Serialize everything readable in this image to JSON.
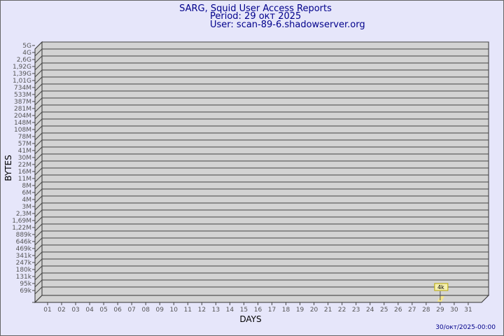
{
  "header": {
    "title": "SARG, Squid User Access Reports",
    "period": "Period: 29 окт 2025",
    "user": "User: scan-89-6.shadowserver.org"
  },
  "footer": {
    "generated": "30/окт/2025-00:00"
  },
  "chart_data": {
    "type": "bar",
    "xlabel": "DAYS",
    "ylabel": "BYTES",
    "categories": [
      "01",
      "02",
      "03",
      "04",
      "05",
      "06",
      "07",
      "08",
      "09",
      "10",
      "11",
      "12",
      "13",
      "14",
      "15",
      "16",
      "17",
      "18",
      "19",
      "20",
      "21",
      "22",
      "23",
      "24",
      "25",
      "26",
      "27",
      "28",
      "29",
      "30",
      "31"
    ],
    "y_tick_labels": [
      "5G",
      "4G",
      "2,6G",
      "1,92G",
      "1,39G",
      "1,01G",
      "734M",
      "533M",
      "387M",
      "281M",
      "204M",
      "148M",
      "108M",
      "78M",
      "57M",
      "41M",
      "30M",
      "22M",
      "16M",
      "11M",
      "8M",
      "6M",
      "4M",
      "3M",
      "2,3M",
      "1,69M",
      "1,22M",
      "889k",
      "646k",
      "469k",
      "341k",
      "247k",
      "180k",
      "131k",
      "95k",
      "69k"
    ],
    "values": [
      {
        "day": "29",
        "value": 4000,
        "label": "4k"
      }
    ],
    "grid": true,
    "colors": {
      "plot": "#d3d3d3",
      "bar": "#f5e68c",
      "label_bg": "#f5f0b0",
      "text": "#00008b"
    }
  }
}
